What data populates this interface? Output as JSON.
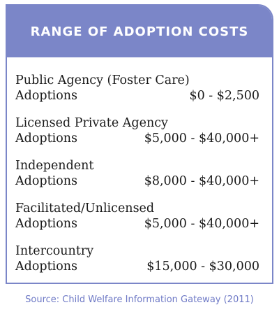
{
  "header": {
    "title": "RANGE OF ADOPTION COSTS"
  },
  "rows": [
    {
      "line1": "Public Agency (Foster Care)",
      "line2": "Adoptions",
      "range": "$0 -  $2,500"
    },
    {
      "line1": "Licensed Private Agency",
      "line2": "Adoptions",
      "range": "$5,000 - $40,000+"
    },
    {
      "line1": "Independent",
      "line2": "Adoptions",
      "range": "$8,000 - $40,000+"
    },
    {
      "line1": "Facilitated/Unlicensed",
      "line2": "Adoptions",
      "range": "$5,000 - $40,000+"
    },
    {
      "line1": "Intercountry",
      "line2": "Adoptions",
      "range": "$15,000 - $30,000"
    }
  ],
  "source": "Source: Child Welfare Information Gateway (2011)",
  "colors": {
    "accent": "#7b86c8",
    "source_text": "#6f7ac6"
  }
}
